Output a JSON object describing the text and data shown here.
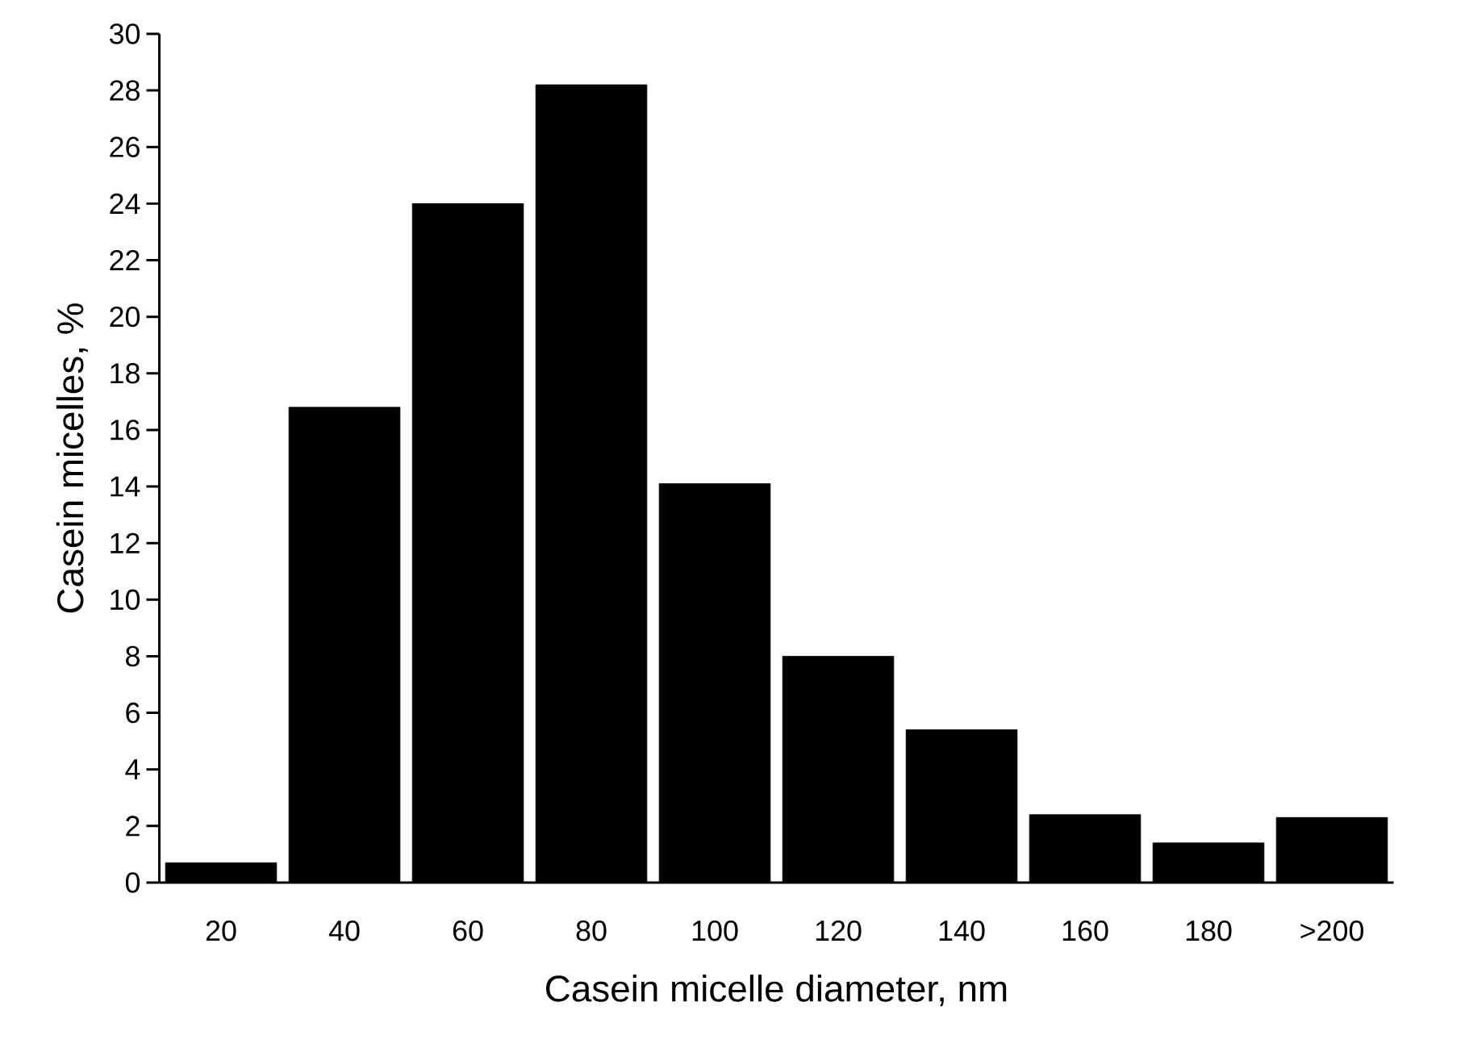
{
  "chart_data": {
    "type": "bar",
    "xlabel": "Casein micelle diameter, nm",
    "ylabel": "Casein micelles, %",
    "categories": [
      "20",
      "40",
      "60",
      "80",
      "100",
      "120",
      "140",
      "160",
      "180",
      ">200"
    ],
    "values": [
      0.7,
      16.8,
      24,
      28.2,
      14.1,
      8,
      5.4,
      2.4,
      1.4,
      2.3
    ],
    "color": "#000000",
    "ylim": [
      0,
      30
    ],
    "yticks": [
      0,
      2,
      4,
      6,
      8,
      10,
      12,
      14,
      16,
      18,
      20,
      22,
      24,
      26,
      28,
      30
    ]
  }
}
